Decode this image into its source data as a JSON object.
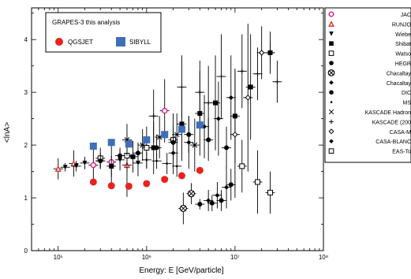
{
  "chart_data": {
    "type": "scatter",
    "title": "",
    "xlabel": "Energy: E [GeV/particle]",
    "ylabel": "<lnA>",
    "xscale": "log",
    "xlim": [
      50000,
      100000000
    ],
    "ylim": [
      0,
      4.6
    ],
    "x_tick_labels": [
      "10⁵",
      "10⁶",
      "10⁷",
      "10⁸"
    ],
    "x_tick_values": [
      100000,
      1000000,
      10000000,
      100000000
    ],
    "y_tick_labels": [
      "0",
      "1",
      "2",
      "3",
      "4"
    ],
    "y_tick_values": [
      0,
      1,
      2,
      3,
      4
    ],
    "legend_inner": {
      "title": "GRAPES-3 this analysis",
      "placement": "top-left",
      "entries": [
        "QGSJET",
        "SIBYLL"
      ]
    },
    "legend_outer": {
      "placement": "right",
      "entries": [
        "JAC",
        "RUNJO",
        "Wiebe",
        "Shibat",
        "Watso",
        "HEGR",
        "Chacaltay",
        "Chacaltay",
        "DIC",
        "MS",
        "KASCADE Hadron",
        "KASCADE (200",
        "CASA-M",
        "CASA-BLANC",
        "EAS-To"
      ]
    },
    "series": [
      {
        "name": "QGSJET",
        "color": "#e8231f",
        "marker": "circle",
        "x": [
          250000,
          400000,
          630000,
          1000000,
          1600000,
          2500000,
          4000000
        ],
        "y": [
          1.3,
          1.23,
          1.22,
          1.27,
          1.35,
          1.42,
          1.52
        ]
      },
      {
        "name": "SIBYLL",
        "color": "#3f6fb8",
        "marker": "square",
        "x": [
          250000,
          400000,
          630000,
          1000000,
          1600000,
          2500000,
          4000000
        ],
        "y": [
          1.98,
          2.05,
          2.02,
          2.1,
          2.2,
          2.3,
          2.38
        ]
      },
      {
        "name": "JAC",
        "color": "#e0198c",
        "marker": "open-circle",
        "x": [
          250000,
          400000,
          1600000
        ],
        "y": [
          1.62,
          1.68,
          2.65
        ],
        "yerr": [
          0.3,
          0.4,
          0.6
        ]
      },
      {
        "name": "RUNJO",
        "color": "#e8231f",
        "marker": "open-triangle",
        "x": [
          100000,
          150000,
          600000
        ],
        "y": [
          1.55,
          1.65,
          1.62
        ],
        "yerr": [
          0.2,
          0.25,
          0.6
        ]
      },
      {
        "name": "Wiebe",
        "color": "#000000",
        "marker": "triangle-down",
        "x": [
          120000,
          160000,
          200000,
          300000,
          500000,
          800000
        ],
        "y": [
          1.58,
          1.6,
          1.66,
          1.7,
          1.72,
          1.66
        ],
        "yerr": [
          0.08,
          0.1,
          0.12,
          0.15,
          0.2,
          0.25
        ]
      },
      {
        "name": "Shibat",
        "color": "#000000",
        "marker": "square",
        "x": [
          400000,
          700000,
          1200000,
          2500000,
          4000000,
          6000000,
          10000000,
          15000000,
          25000000
        ],
        "y": [
          1.6,
          1.78,
          1.95,
          2.4,
          2.6,
          2.8,
          2.55,
          3.1,
          3.75
        ],
        "yerr": [
          0.2,
          0.3,
          0.5,
          0.7,
          0.8,
          0.9,
          0.9,
          1.0,
          0.2
        ]
      },
      {
        "name": "Watso",
        "color": "#000000",
        "marker": "open-square",
        "x": [
          300000,
          600000,
          1000000,
          2000000
        ],
        "y": [
          1.75,
          1.8,
          1.95,
          2.1
        ],
        "yerr": [
          0.2,
          0.3,
          0.4,
          0.5
        ]
      },
      {
        "name": "HEGR",
        "color": "#000000",
        "marker": "circle",
        "x": [
          300000,
          500000,
          800000,
          1300000,
          2000000,
          3000000,
          5000000,
          8000000
        ],
        "y": [
          1.7,
          1.8,
          1.85,
          1.95,
          2.05,
          2.2,
          2.1,
          1.95
        ],
        "yerr": [
          0.1,
          0.15,
          0.2,
          0.25,
          0.3,
          0.35,
          0.4,
          0.4
        ]
      },
      {
        "name": "Chacaltay",
        "color": "#000000",
        "marker": "circle-cross",
        "x": [
          3200000,
          2600000
        ],
        "y": [
          1.08,
          0.8
        ],
        "yerr": [
          0.2,
          0.3
        ]
      },
      {
        "name": "Chacaltay",
        "color": "#000000",
        "marker": "diamond",
        "x": [
          5000000,
          6300000,
          8000000
        ],
        "y": [
          0.95,
          1.05,
          1.2
        ],
        "yerr": [
          0.2,
          0.25,
          0.4
        ]
      },
      {
        "name": "DIC",
        "color": "#000000",
        "marker": "circle",
        "x": [
          4000000,
          5500000,
          7000000,
          9000000
        ],
        "y": [
          0.88,
          0.9,
          0.95,
          1.25
        ],
        "yerr": [
          0.1,
          0.15,
          0.2,
          0.3
        ]
      },
      {
        "name": "MS",
        "color": "#000000",
        "marker": "dot",
        "x": [
          1000000,
          1300000,
          1700000,
          2200000
        ],
        "y": [
          1.72,
          1.7,
          1.65,
          1.6
        ],
        "yerr": [
          0.15,
          0.15,
          0.2,
          0.2
        ]
      },
      {
        "name": "KASCADE Hadron",
        "color": "#000000",
        "marker": "cross",
        "x": [
          600000,
          900000,
          1400000,
          2200000,
          3500000
        ],
        "y": [
          2.1,
          2.0,
          2.15,
          2.2,
          2.0
        ],
        "yerr": [
          0.3,
          0.3,
          0.4,
          0.4,
          0.5
        ]
      },
      {
        "name": "KASCADE (200",
        "color": "#000000",
        "marker": "plus",
        "x": [
          1200000,
          2500000,
          4000000,
          5000000,
          7000000,
          12000000,
          18000000,
          25000000,
          30000000
        ],
        "y": [
          2.55,
          3.1,
          3.0,
          2.8,
          3.3,
          3.4,
          3.35,
          3.75,
          3.2
        ],
        "yerr": [
          0.5,
          0.6,
          0.6,
          0.7,
          0.8,
          0.7,
          0.5,
          0.4,
          0.4
        ]
      },
      {
        "name": "CASA-M",
        "color": "#000000",
        "marker": "open-diamond",
        "x": [
          10000000,
          14000000,
          20000000
        ],
        "y": [
          2.2,
          2.9,
          3.75
        ],
        "yerr": [
          1.2,
          1.4,
          0.5
        ]
      },
      {
        "name": "CASA-BLANC",
        "color": "#000000",
        "marker": "diamond",
        "x": [
          2000000,
          3000000,
          4500000,
          6500000,
          9000000
        ],
        "y": [
          1.85,
          2.05,
          2.35,
          2.5,
          2.9
        ],
        "yerr": [
          0.4,
          0.5,
          0.6,
          0.7,
          0.8
        ]
      },
      {
        "name": "EAS-To",
        "color": "#000000",
        "marker": "open-square",
        "x": [
          12000000,
          18000000,
          25000000
        ],
        "y": [
          1.6,
          1.3,
          1.1
        ],
        "yerr": [
          0.5,
          0.6,
          0.4
        ]
      }
    ]
  }
}
